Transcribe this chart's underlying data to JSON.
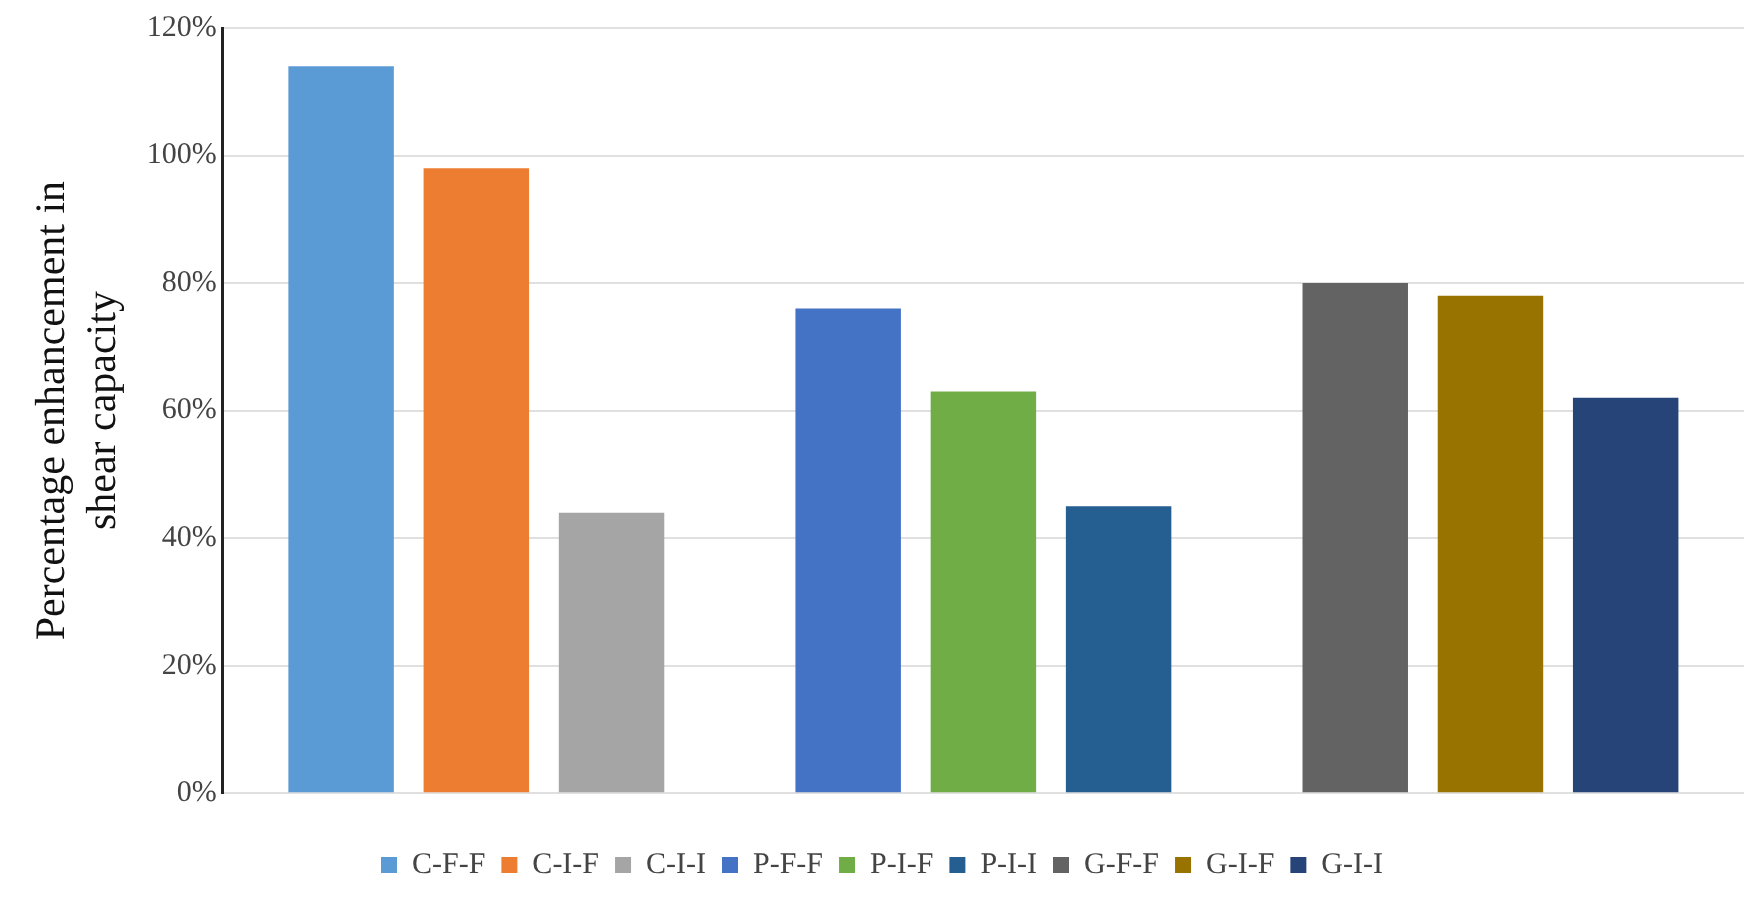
{
  "chart_data": {
    "type": "bar",
    "ylabel": "Percentage enhancement in shear capacity",
    "categories": [
      null,
      null,
      null
    ],
    "series": [
      {
        "name": "C-F-F",
        "color": "#5b9bd5",
        "values": [
          114,
          null,
          null
        ]
      },
      {
        "name": "C-I-F",
        "color": "#ed7d31",
        "values": [
          98,
          null,
          null
        ]
      },
      {
        "name": "C-I-I",
        "color": "#a5a5a5",
        "values": [
          44,
          null,
          null
        ]
      },
      {
        "name": "P-F-F",
        "color": "#4472c4",
        "values": [
          null,
          76,
          null
        ]
      },
      {
        "name": "P-I-F",
        "color": "#70ad47",
        "values": [
          null,
          63,
          null
        ]
      },
      {
        "name": "P-I-I",
        "color": "#255e91",
        "values": [
          null,
          45,
          null
        ]
      },
      {
        "name": "G-F-F",
        "color": "#636363",
        "values": [
          null,
          null,
          80
        ]
      },
      {
        "name": "G-I-F",
        "color": "#997300",
        "values": [
          null,
          null,
          78
        ]
      },
      {
        "name": "G-I-I",
        "color": "#264478",
        "values": [
          null,
          null,
          62
        ]
      }
    ],
    "ylim": [
      0,
      120
    ],
    "yticks": [
      {
        "value": 0,
        "label": "0%"
      },
      {
        "value": 20,
        "label": "20%"
      },
      {
        "value": 40,
        "label": "40%"
      },
      {
        "value": 60,
        "label": "60%"
      },
      {
        "value": 80,
        "label": "80%"
      },
      {
        "value": 100,
        "label": "100%"
      },
      {
        "value": 120,
        "label": "120%"
      }
    ],
    "grid": "y",
    "legend": "bottom"
  }
}
